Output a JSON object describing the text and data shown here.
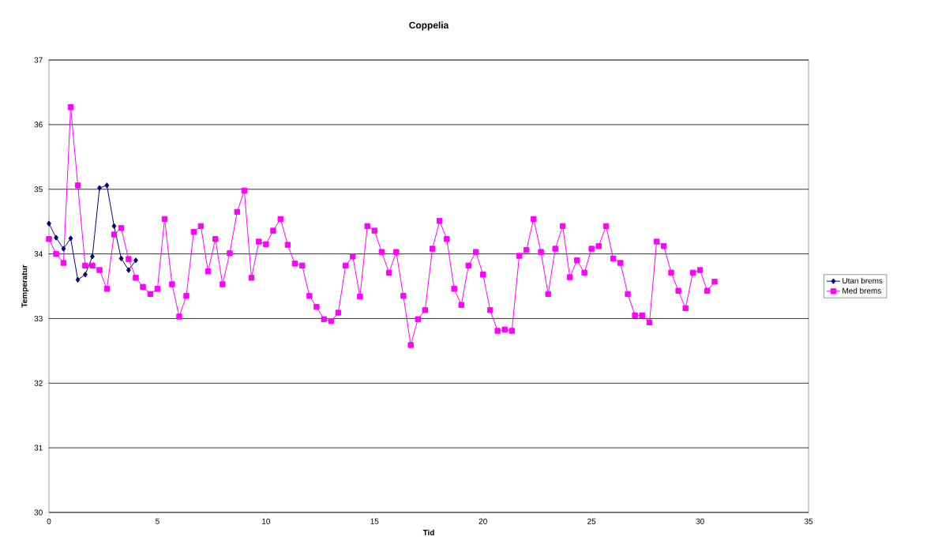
{
  "chart_data": {
    "type": "line",
    "title": "Coppelia",
    "xlabel": "Tid",
    "ylabel": "Temperatur",
    "xlim": [
      0,
      35
    ],
    "xticks": [
      0,
      5,
      10,
      15,
      20,
      25,
      30,
      35
    ],
    "ylim": [
      30,
      37
    ],
    "yticks": [
      30,
      31,
      32,
      33,
      34,
      35,
      36,
      37
    ],
    "grid": "y",
    "legend": "right",
    "line_style": "solid",
    "series": [
      {
        "name": "Utan brems",
        "color": "#000080",
        "marker": "diamond",
        "x": [
          0,
          0.33,
          0.67,
          1,
          1.33,
          1.67,
          2,
          2.33,
          2.67,
          3,
          3.33,
          3.67,
          4
        ],
        "values": [
          34.47,
          34.25,
          34.08,
          34.24,
          33.6,
          33.68,
          33.96,
          35.02,
          35.06,
          34.43,
          33.93,
          33.75,
          33.9
        ]
      },
      {
        "name": "Med brems",
        "color": "#ff00ff",
        "marker": "square",
        "x": [
          0,
          0.33,
          0.67,
          1,
          1.33,
          1.67,
          2,
          2.33,
          2.67,
          3,
          3.33,
          3.67,
          4,
          4.33,
          4.67,
          5,
          5.33,
          5.67,
          6,
          6.33,
          6.67,
          7,
          7.33,
          7.67,
          8,
          8.33,
          8.67,
          9,
          9.33,
          9.67,
          10,
          10.33,
          10.67,
          11,
          11.33,
          11.67,
          12,
          12.33,
          12.67,
          13,
          13.33,
          13.67,
          14,
          14.33,
          14.67,
          15,
          15.33,
          15.67,
          16,
          16.33,
          16.67,
          17,
          17.33,
          17.67,
          18,
          18.33,
          18.67,
          19,
          19.33,
          19.67,
          20,
          20.33,
          20.67,
          21,
          21.33,
          21.67,
          22,
          22.33,
          22.67,
          23,
          23.33,
          23.67,
          24,
          24.33,
          24.67,
          25,
          25.33,
          25.67,
          26,
          26.33,
          26.67,
          27,
          27.33,
          27.67,
          28,
          28.33,
          28.67,
          29,
          29.33,
          29.67,
          30,
          30.33,
          30.67
        ],
        "values": [
          34.23,
          34.0,
          33.86,
          36.27,
          35.06,
          33.82,
          33.82,
          33.75,
          33.46,
          34.3,
          34.4,
          33.92,
          33.63,
          33.49,
          33.38,
          33.46,
          34.54,
          33.53,
          33.03,
          33.35,
          34.34,
          34.43,
          33.73,
          34.23,
          33.53,
          34.01,
          34.65,
          34.98,
          33.63,
          34.19,
          34.15,
          34.36,
          34.54,
          34.14,
          33.85,
          33.82,
          33.35,
          33.18,
          32.99,
          32.96,
          33.09,
          33.82,
          33.96,
          33.34,
          34.43,
          34.36,
          34.03,
          33.71,
          34.03,
          33.35,
          32.59,
          32.99,
          33.13,
          34.08,
          34.51,
          34.23,
          33.46,
          33.21,
          33.82,
          34.03,
          33.68,
          33.13,
          32.81,
          32.83,
          32.81,
          33.97,
          34.06,
          34.54,
          34.03,
          33.38,
          34.08,
          34.43,
          33.64,
          33.9,
          33.71,
          34.08,
          34.12,
          34.43,
          33.93,
          33.86,
          33.38,
          33.05,
          33.05,
          32.94,
          34.19,
          34.12,
          33.71,
          33.43,
          33.16,
          33.71,
          33.75,
          33.43,
          33.57
        ]
      }
    ]
  }
}
